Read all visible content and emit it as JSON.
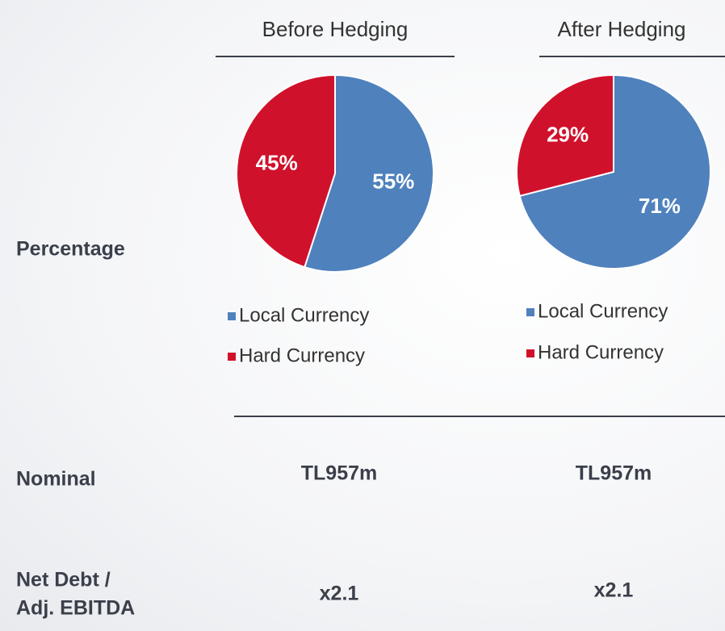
{
  "chart_data": [
    {
      "type": "pie",
      "title": "Before Hedging",
      "categories": [
        "Local Currency",
        "Hard Currency"
      ],
      "values": [
        55,
        45
      ],
      "value_labels": [
        "55%",
        "45%"
      ],
      "colors": [
        "#4f81bd",
        "#d0112b"
      ]
    },
    {
      "type": "pie",
      "title": "After Hedging",
      "categories": [
        "Local Currency",
        "Hard Currency"
      ],
      "values": [
        71,
        29
      ],
      "value_labels": [
        "71%",
        "29%"
      ],
      "colors": [
        "#4f81bd",
        "#d0112b"
      ]
    }
  ],
  "rows": [
    {
      "label": [
        "Percentage"
      ]
    },
    {
      "label": [
        "Nominal"
      ],
      "values": [
        "TL957m",
        "TL957m"
      ]
    },
    {
      "label": [
        "Net Debt /",
        "Adj. EBITDA"
      ],
      "values": [
        "x2.1",
        "x2.1"
      ]
    }
  ]
}
